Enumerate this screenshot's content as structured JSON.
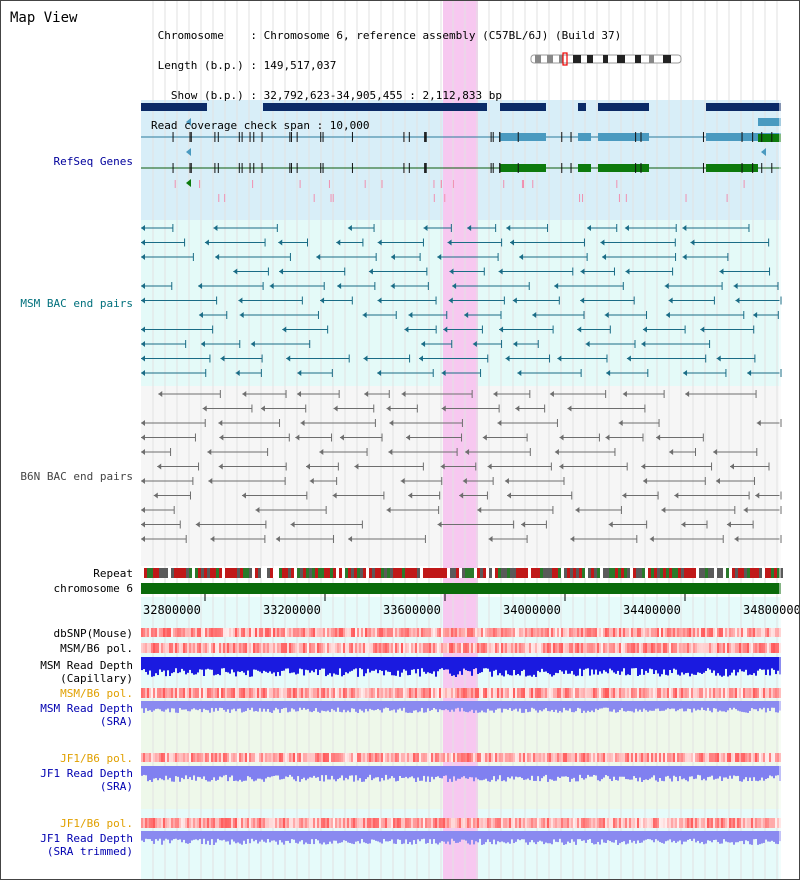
{
  "title": "Map View",
  "header": {
    "lines": [
      " Chromosome    : Chromosome 6, reference assembly (C57BL/6J) (Build 37)",
      " Length (b.p.) : 149,517,037",
      "   Show (b.p.) : 32,792,623-34,905,455 : 2,112,833 bp",
      "Read coverage check span : 10,000"
    ]
  },
  "colors": {
    "refseq_label": "#00009c",
    "msm_label": "#00707c",
    "b6n_label": "#444444",
    "sra_label": "#0000b0",
    "pol_orange": "#e0a000",
    "highlight": "#f7c8f0"
  },
  "tracks": {
    "refseq": "RefSeq Genes",
    "msm_bac": "MSM BAC end pairs",
    "b6n_bac": "B6N BAC end pairs",
    "repeat": "Repeat",
    "chromosome": "chromosome 6",
    "dbsnp": "dbSNP(Mouse)",
    "msm_b6_pol_1": "MSM/B6 pol.",
    "msm_read_cap": "MSM Read Depth\n(Capillary)",
    "msm_b6_pol_2": "MSM/B6 pol.",
    "msm_read_sra": "MSM Read Depth\n(SRA)",
    "jf1_b6_pol_1": "JF1/B6 pol.",
    "jf1_read_sra": "JF1 Read Depth\n(SRA)",
    "jf1_b6_pol_2": "JF1/B6 pol.",
    "jf1_read_trim": "JF1 Read Depth\n(SRA trimmed)"
  },
  "axis": {
    "ticks": [
      "32800000",
      "33200000",
      "33600000",
      "34000000",
      "34400000",
      "34800000"
    ]
  }
}
